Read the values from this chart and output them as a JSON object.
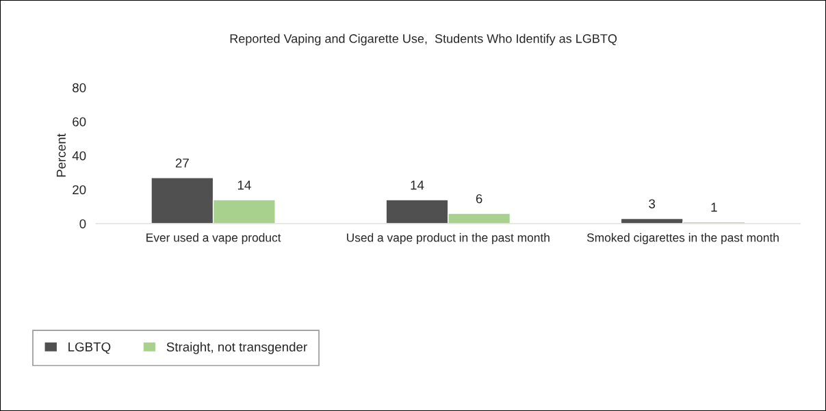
{
  "chart_data": {
    "type": "bar",
    "title": "Reported Vaping and Cigarette Use,  Students Who Identify as LGBTQ",
    "ylabel": "Percent",
    "categories": [
      "Ever used a vape product",
      "Used a vape product in the past month",
      "Smoked cigarettes in the past month"
    ],
    "series": [
      {
        "name": "LGBTQ",
        "color": "#505050",
        "values": [
          27,
          14,
          3
        ]
      },
      {
        "name": "Straight, not transgender",
        "color": "#a9d18e",
        "values": [
          14,
          6,
          1
        ]
      }
    ],
    "ylim": [
      0,
      80
    ],
    "yticks": [
      0,
      20,
      40,
      60,
      80
    ],
    "data_labels": true,
    "grid": false,
    "legend": "bottom left"
  }
}
